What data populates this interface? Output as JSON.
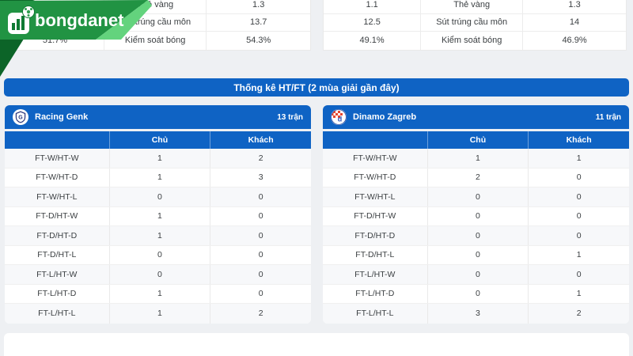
{
  "logo": {
    "text": "bongdanet"
  },
  "top_stats": {
    "left_table": {
      "rows": [
        {
          "home": "",
          "label": "Thẻ vàng",
          "away": "1.3"
        },
        {
          "home": "",
          "label": "Sút trúng cầu môn",
          "away": "13.7"
        },
        {
          "home": "51.7%",
          "label": "Kiểm soát bóng",
          "away": "54.3%"
        }
      ]
    },
    "right_table": {
      "rows": [
        {
          "home": "1.1",
          "label": "Thẻ vàng",
          "away": "1.3"
        },
        {
          "home": "12.5",
          "label": "Sút trúng cầu môn",
          "away": "14"
        },
        {
          "home": "49.1%",
          "label": "Kiểm soát bóng",
          "away": "46.9%"
        }
      ]
    }
  },
  "section": {
    "title": "Thống kê HT/FT (2 mùa giải gần đây)"
  },
  "table_columns": {
    "home": "Chủ",
    "away": "Khách"
  },
  "panels": [
    {
      "team": "Racing Genk",
      "matches": "13 trận",
      "rows": [
        {
          "label": "FT-W/HT-W",
          "home": "1",
          "away": "2"
        },
        {
          "label": "FT-W/HT-D",
          "home": "1",
          "away": "3"
        },
        {
          "label": "FT-W/HT-L",
          "home": "0",
          "away": "0"
        },
        {
          "label": "FT-D/HT-W",
          "home": "1",
          "away": "0"
        },
        {
          "label": "FT-D/HT-D",
          "home": "1",
          "away": "0"
        },
        {
          "label": "FT-D/HT-L",
          "home": "0",
          "away": "0"
        },
        {
          "label": "FT-L/HT-W",
          "home": "0",
          "away": "0"
        },
        {
          "label": "FT-L/HT-D",
          "home": "1",
          "away": "0"
        },
        {
          "label": "FT-L/HT-L",
          "home": "1",
          "away": "2"
        }
      ]
    },
    {
      "team": "Dinamo Zagreb",
      "matches": "11 trận",
      "rows": [
        {
          "label": "FT-W/HT-W",
          "home": "1",
          "away": "1"
        },
        {
          "label": "FT-W/HT-D",
          "home": "2",
          "away": "0"
        },
        {
          "label": "FT-W/HT-L",
          "home": "0",
          "away": "0"
        },
        {
          "label": "FT-D/HT-W",
          "home": "0",
          "away": "0"
        },
        {
          "label": "FT-D/HT-D",
          "home": "0",
          "away": "0"
        },
        {
          "label": "FT-D/HT-L",
          "home": "0",
          "away": "1"
        },
        {
          "label": "FT-L/HT-W",
          "home": "0",
          "away": "0"
        },
        {
          "label": "FT-L/HT-D",
          "home": "0",
          "away": "1"
        },
        {
          "label": "FT-L/HT-L",
          "home": "3",
          "away": "2"
        }
      ]
    }
  ],
  "colors": {
    "accent_blue": "#0f63c4",
    "brand_green": "#219343",
    "brand_green_light": "#63d37d",
    "row_stripe": "#f7f8fa"
  }
}
